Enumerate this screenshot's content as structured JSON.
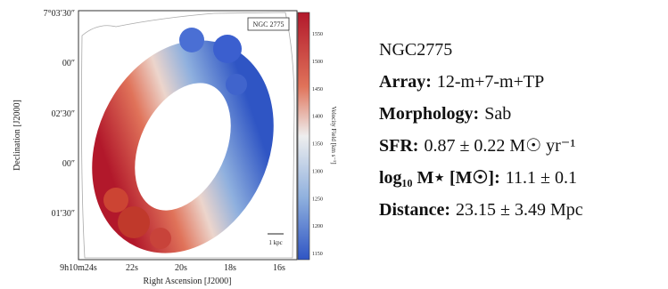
{
  "figure": {
    "panel_label": "NGC 2775",
    "scale_bar": "1 kpc",
    "x_axis_label": "Right Ascension [J2000]",
    "y_axis_label": "Declination [J2000]",
    "x_ticks": [
      "9h10m24s",
      "22s",
      "20s",
      "18s",
      "16s"
    ],
    "y_ticks": [
      "7°03′30″",
      "00″",
      "02′30″",
      "00″",
      "01′30″"
    ],
    "colorbar_label": "Velocity Field [km s⁻¹]",
    "colorbar_ticks": [
      1550,
      1500,
      1450,
      1400,
      1350,
      1300,
      1250,
      1200,
      1150
    ]
  },
  "info": {
    "name": "NGC2775",
    "rows": [
      {
        "label": "Array:",
        "value": "12-m+7-m+TP"
      },
      {
        "label": "Morphology:",
        "value": "Sab"
      },
      {
        "label": "SFR:",
        "value": "0.87 ± 0.22 M☉ yr⁻¹"
      },
      {
        "label": "log₁₀ M⋆ [M☉]:",
        "value": "11.1 ± 0.1"
      },
      {
        "label": "Distance:",
        "value": "23.15 ± 3.49 Mpc"
      }
    ]
  }
}
